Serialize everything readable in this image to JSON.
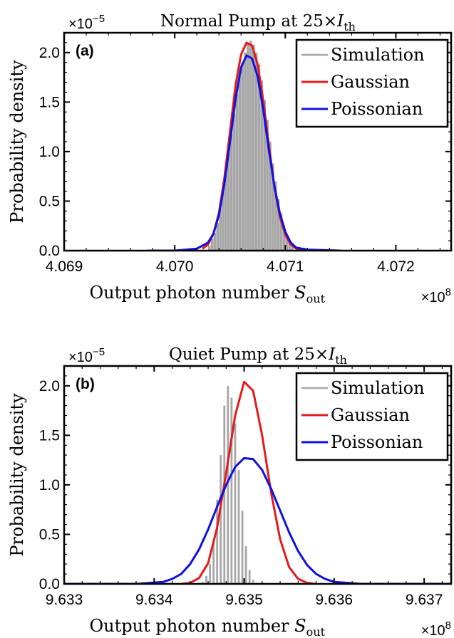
{
  "chart_data": [
    {
      "type": "bar",
      "panel_label": "(a)",
      "title": "Normal Pump at 25×I_th",
      "title_parts": {
        "main": "Normal Pump at 25×",
        "var": "I",
        "sub": "th"
      },
      "xlabel": "Output photon number S_out",
      "xlabel_parts": {
        "main": "Output photon number ",
        "var": "S",
        "sub": "out"
      },
      "ylabel": "Probability density",
      "x_multiplier": {
        "base": "×10",
        "exp": "8"
      },
      "y_multiplier": {
        "base": "×10",
        "exp": "−5"
      },
      "xlim": [
        4.069,
        4.0725
      ],
      "ylim": [
        0,
        2.2
      ],
      "xticks": [
        "4.069",
        "4.070",
        "4.071",
        "4.072"
      ],
      "xtick_values": [
        4.069,
        4.07,
        4.071,
        4.072
      ],
      "yticks": [
        "0.0",
        "0.5",
        "1.0",
        "1.5",
        "2.0"
      ],
      "ytick_values": [
        0,
        0.5,
        1.0,
        1.5,
        2.0
      ],
      "legend": {
        "position": "top-right",
        "entries": [
          "Simulation",
          "Gaussian",
          "Poissonian"
        ]
      },
      "histogram": {
        "name": "Simulation",
        "color": "#a6a6a6",
        "x_start": 4.0703,
        "bin_width": 2.5e-05,
        "bar_fraction": 0.92,
        "values": [
          0.05,
          0.12,
          0.18,
          0.28,
          0.42,
          0.6,
          0.78,
          0.98,
          1.18,
          1.38,
          1.58,
          1.76,
          1.9,
          2.0,
          2.1,
          2.12,
          2.08,
          2.0,
          1.88,
          1.72,
          1.52,
          1.32,
          1.1,
          0.88,
          0.7,
          0.52,
          0.38,
          0.26,
          0.16,
          0.09,
          0.04
        ]
      },
      "series": [
        {
          "name": "Gaussian",
          "color": "#e41a1c",
          "width": 3,
          "x": [
            4.07025,
            4.0703,
            4.07035,
            4.0704,
            4.07045,
            4.0705,
            4.07055,
            4.0706,
            4.07065,
            4.0707,
            4.07075,
            4.0708,
            4.07085,
            4.0709,
            4.07095,
            4.071,
            4.07105,
            4.0711,
            4.07115
          ],
          "y": [
            0.02,
            0.06,
            0.17,
            0.38,
            0.74,
            1.2,
            1.67,
            1.98,
            2.1,
            2.07,
            1.88,
            1.52,
            1.08,
            0.66,
            0.35,
            0.16,
            0.06,
            0.02,
            0.0
          ]
        },
        {
          "name": "Poissonian",
          "color": "#1010e0",
          "width": 3,
          "x": [
            4.06975,
            4.07,
            4.0702,
            4.0703,
            4.07035,
            4.0704,
            4.07045,
            4.0705,
            4.07055,
            4.0706,
            4.07065,
            4.0707,
            4.07075,
            4.0708,
            4.07085,
            4.0709,
            4.07095,
            4.071,
            4.07105,
            4.0711,
            4.0712,
            4.0715
          ],
          "y": [
            0.0,
            0.0,
            0.02,
            0.08,
            0.17,
            0.36,
            0.68,
            1.1,
            1.53,
            1.85,
            1.97,
            1.94,
            1.76,
            1.43,
            1.03,
            0.66,
            0.38,
            0.19,
            0.08,
            0.03,
            0.01,
            0.0
          ]
        }
      ]
    },
    {
      "type": "bar",
      "panel_label": "(b)",
      "title": "Quiet Pump at 25×I_th",
      "title_parts": {
        "main": "Quiet Pump at 25×",
        "var": "I",
        "sub": "th"
      },
      "xlabel": "Output photon number S_out",
      "xlabel_parts": {
        "main": "Output photon number ",
        "var": "S",
        "sub": "out"
      },
      "ylabel": "Probability density",
      "x_multiplier": {
        "base": "×10",
        "exp": "8"
      },
      "y_multiplier": {
        "base": "×10",
        "exp": "−5"
      },
      "xlim": [
        9.633,
        9.6373
      ],
      "ylim": [
        0,
        2.2
      ],
      "xticks": [
        "9.633",
        "9.634",
        "9.635",
        "9.636",
        "9.637"
      ],
      "xtick_values": [
        9.633,
        9.634,
        9.635,
        9.636,
        9.637
      ],
      "yticks": [
        "0.0",
        "0.5",
        "1.0",
        "1.5",
        "2.0"
      ],
      "ytick_values": [
        0,
        0.5,
        1.0,
        1.5,
        2.0
      ],
      "legend": {
        "position": "top-right",
        "entries": [
          "Simulation",
          "Gaussian",
          "Poissonian"
        ]
      },
      "histogram": {
        "name": "Simulation",
        "color": "#a6a6a6",
        "x_start": 9.63452,
        "bin_width": 4e-05,
        "bar_fraction": 0.55,
        "values": [
          0.02,
          0.08,
          0.2,
          0.45,
          0.85,
          1.3,
          1.8,
          2.0,
          1.88,
          1.62,
          1.15,
          0.74,
          0.38,
          0.14,
          0.04
        ]
      },
      "series": [
        {
          "name": "Gaussian",
          "color": "#e41a1c",
          "width": 3,
          "x": [
            9.6343,
            9.6344,
            9.6345,
            9.6346,
            9.6347,
            9.6348,
            9.6349,
            9.635,
            9.6351,
            9.6352,
            9.6353,
            9.6354,
            9.6355,
            9.6356,
            9.6357,
            9.6358
          ],
          "y": [
            0.0,
            0.01,
            0.06,
            0.21,
            0.57,
            1.12,
            1.7,
            2.04,
            1.95,
            1.5,
            0.92,
            0.45,
            0.17,
            0.05,
            0.01,
            0.0
          ]
        },
        {
          "name": "Poissonian",
          "color": "#1010e0",
          "width": 3,
          "x": [
            9.633,
            9.6338,
            9.6341,
            9.6342,
            9.6343,
            9.6344,
            9.6345,
            9.6346,
            9.6347,
            9.6348,
            9.6349,
            9.635,
            9.6351,
            9.6352,
            9.6353,
            9.6354,
            9.6355,
            9.6356,
            9.6357,
            9.6358,
            9.6359,
            9.636,
            9.6363,
            9.6373
          ],
          "y": [
            0.0,
            0.0,
            0.02,
            0.05,
            0.1,
            0.2,
            0.35,
            0.55,
            0.78,
            1.0,
            1.18,
            1.27,
            1.26,
            1.15,
            0.96,
            0.74,
            0.52,
            0.33,
            0.19,
            0.1,
            0.05,
            0.02,
            0.0,
            0.0
          ]
        }
      ]
    }
  ]
}
